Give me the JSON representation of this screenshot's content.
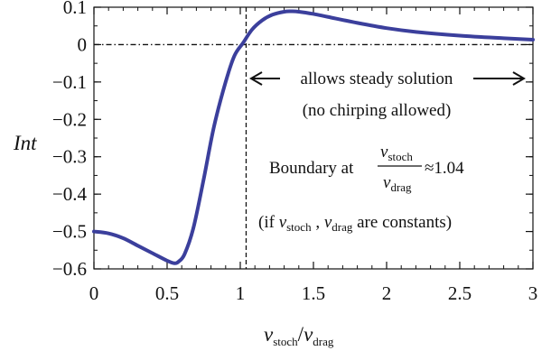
{
  "chart_data": {
    "type": "line",
    "title": "",
    "xlabel": {
      "main": "ν",
      "sub1": "stoch",
      "slash": "/",
      "main2": "ν",
      "sub2": "drag"
    },
    "ylabel": "Int",
    "xlim": [
      0,
      3
    ],
    "ylim": [
      -0.6,
      0.1
    ],
    "x_ticks": [
      "0",
      "0.5",
      "1",
      "1.5",
      "2",
      "2.5",
      "3"
    ],
    "y_ticks": [
      "0.1",
      "0",
      "−0.1",
      "−0.2",
      "−0.3",
      "−0.4",
      "−0.5",
      "−0.6"
    ],
    "grid": false,
    "line_color": "#3b3f9c",
    "series": [
      {
        "name": "",
        "x": [
          0,
          0.1,
          0.2,
          0.3,
          0.4,
          0.5,
          0.55,
          0.58,
          0.62,
          0.68,
          0.75,
          0.82,
          0.9,
          0.96,
          1.02,
          1.08,
          1.15,
          1.22,
          1.3,
          1.35,
          1.4,
          1.5,
          1.6,
          1.8,
          2.0,
          2.2,
          2.5,
          2.8,
          3.0
        ],
        "y": [
          -0.5,
          -0.505,
          -0.518,
          -0.538,
          -0.558,
          -0.578,
          -0.585,
          -0.58,
          -0.56,
          -0.49,
          -0.36,
          -0.22,
          -0.1,
          -0.03,
          0.005,
          0.04,
          0.065,
          0.08,
          0.088,
          0.089,
          0.088,
          0.082,
          0.074,
          0.058,
          0.044,
          0.034,
          0.024,
          0.017,
          0.013
        ]
      }
    ],
    "reference_lines": {
      "vertical_x": 1.04,
      "horizontal_y": 0
    },
    "annotations": {
      "region": "allows steady solution",
      "region_note": "(no chirping allowed)",
      "boundary_prefix": "Boundary at",
      "frac_num_main": "ν",
      "frac_num_sub": "stoch",
      "frac_den_main": "ν",
      "frac_den_sub": "drag",
      "boundary_value": "≈1.04",
      "const_open": "(if",
      "const_v1": "ν",
      "const_v1_sub": "stoch",
      "const_comma": ",",
      "const_v2": "ν",
      "const_v2_sub": "drag",
      "const_tail": "are constants)"
    }
  }
}
